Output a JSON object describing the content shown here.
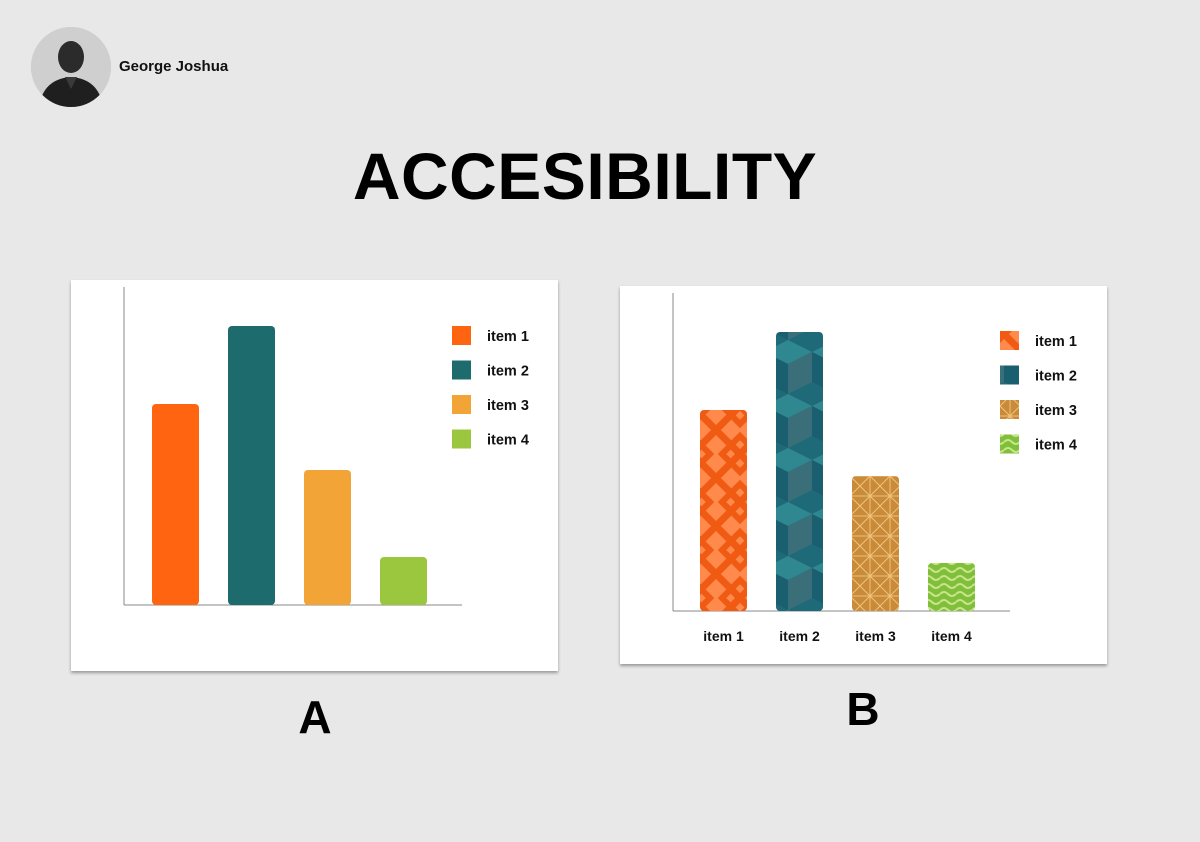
{
  "author": {
    "name": "George Joshua"
  },
  "page": {
    "title": "ACCESIBILITY"
  },
  "colors": {
    "background": "#e8e8e8",
    "item1": "#ff6510",
    "item2": "#1e6b6e",
    "item3": "#f2a536",
    "item4": "#9bc73e"
  },
  "panels": [
    {
      "label": "A"
    },
    {
      "label": "B"
    }
  ],
  "chart_data": [
    {
      "type": "bar",
      "panel": "A",
      "style": "solid colors",
      "categories": [
        "item 1",
        "item 2",
        "item 3",
        "item 4"
      ],
      "values": [
        67,
        93,
        45,
        16
      ],
      "legend": [
        "item 1",
        "item 2",
        "item 3",
        "item 4"
      ],
      "legend_position": "top-right",
      "show_tick_labels": false,
      "ylim": [
        0,
        100
      ],
      "grid": false
    },
    {
      "type": "bar",
      "panel": "B",
      "style": "patterned fills",
      "patterns": [
        "diamond-chevron",
        "cubes",
        "star-lattice",
        "waves"
      ],
      "categories": [
        "item 1",
        "item 2",
        "item 3",
        "item 4"
      ],
      "values": [
        67,
        93,
        45,
        16
      ],
      "legend": [
        "item 1",
        "item 2",
        "item 3",
        "item 4"
      ],
      "legend_position": "top-right",
      "show_tick_labels": true,
      "ylim": [
        0,
        100
      ],
      "grid": false
    }
  ]
}
